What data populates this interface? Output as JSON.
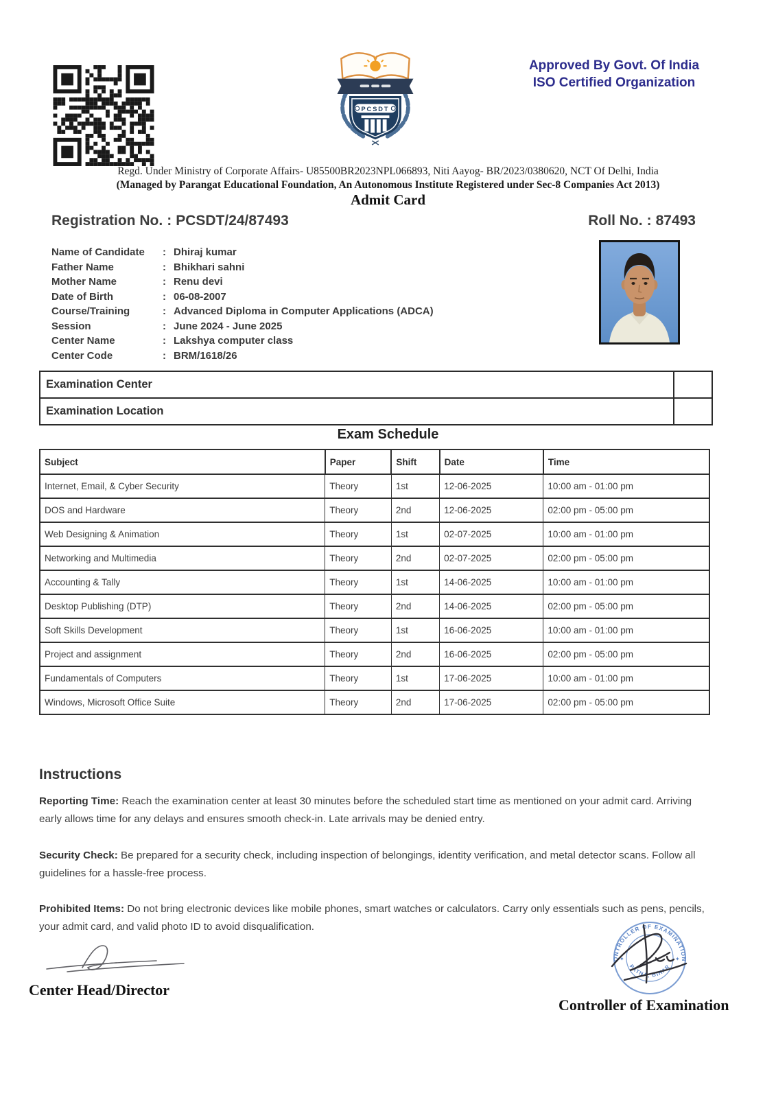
{
  "header": {
    "approved_line1": "Approved By Govt. Of India",
    "approved_line2": "ISO Certified Organization",
    "regd_line": "Regd. Under Ministry of Corporate Affairs- U85500BR2023NPL066893, Niti Aayog- BR/2023/0380620, NCT Of Delhi, India",
    "managed_line": "(Managed by Parangat Educational Foundation, An Autonomous Institute Registered under Sec-8 Companies Act 2013)",
    "title": "Admit Card"
  },
  "logo": {
    "text": "PCSDT"
  },
  "identity": {
    "separator": ":",
    "registration": {
      "label": "Registration No.",
      "value": "PCSDT/24/87493"
    },
    "roll": {
      "label": "Roll No.",
      "value": "87493"
    }
  },
  "candidate": {
    "separator": ":",
    "rows": [
      {
        "label": "Name of Candidate",
        "value": "Dhiraj kumar"
      },
      {
        "label": "Father Name",
        "value": "Bhikhari sahni"
      },
      {
        "label": "Mother Name",
        "value": "Renu devi"
      },
      {
        "label": "Date of Birth",
        "value": "06-08-2007"
      },
      {
        "label": "Course/Training",
        "value": "Advanced Diploma in Computer Applications (ADCA)"
      },
      {
        "label": "Session",
        "value": "June 2024 - June 2025"
      },
      {
        "label": "Center Name",
        "value": "Lakshya computer class"
      },
      {
        "label": "Center Code",
        "value": "BRM/1618/26"
      }
    ]
  },
  "exam_center": {
    "rows": [
      "Examination Center",
      "Examination Location"
    ]
  },
  "schedule": {
    "title": "Exam Schedule",
    "columns": [
      "Subject",
      "Paper",
      "Shift",
      "Date",
      "Time"
    ],
    "rows": [
      [
        "Internet, Email, & Cyber Security",
        "Theory",
        "1st",
        "12-06-2025",
        "10:00 am - 01:00 pm"
      ],
      [
        "DOS and Hardware",
        "Theory",
        "2nd",
        "12-06-2025",
        "02:00 pm - 05:00 pm"
      ],
      [
        "Web Designing & Animation",
        "Theory",
        "1st",
        "02-07-2025",
        "10:00 am - 01:00 pm"
      ],
      [
        "Networking and Multimedia",
        "Theory",
        "2nd",
        "02-07-2025",
        "02:00 pm - 05:00 pm"
      ],
      [
        "Accounting & Tally",
        "Theory",
        "1st",
        "14-06-2025",
        "10:00 am - 01:00 pm"
      ],
      [
        "Desktop Publishing (DTP)",
        "Theory",
        "2nd",
        "14-06-2025",
        "02:00 pm - 05:00 pm"
      ],
      [
        "Soft Skills Development",
        "Theory",
        "1st",
        "16-06-2025",
        "10:00 am - 01:00 pm"
      ],
      [
        "Project and assignment",
        "Theory",
        "2nd",
        "16-06-2025",
        "02:00 pm - 05:00 pm"
      ],
      [
        "Fundamentals of Computers",
        "Theory",
        "1st",
        "17-06-2025",
        "10:00 am - 01:00 pm"
      ],
      [
        "Windows, Microsoft Office Suite",
        "Theory",
        "2nd",
        "17-06-2025",
        "02:00 pm - 05:00 pm"
      ]
    ]
  },
  "instructions": {
    "title": "Instructions",
    "items": [
      {
        "label": "Reporting Time:",
        "text": "Reach the examination center at least 30 minutes before the scheduled start time as mentioned on your admit card. Arriving early allows time for any delays and ensures smooth check-in. Late arrivals may be denied entry."
      },
      {
        "label": "Security Check:",
        "text": "Be prepared for a security check, including inspection of belongings, identity verification, and metal detector scans. Follow all guidelines for a hassle-free process."
      },
      {
        "label": "Prohibited Items:",
        "text": "Do not bring electronic devices like mobile phones, smart watches or calculators.  Carry only essentials such as pens, pencils, your admit card, and valid photo ID to avoid disqualification."
      }
    ]
  },
  "footer": {
    "left_title": "Center Head/Director",
    "right_title": "Controller of Examination",
    "stamp_top": "CONTROLLER OF EXAMINATIONS",
    "stamp_bottom": "PATNA, BIHAR"
  },
  "colors": {
    "approved_navy": "#2d2d8d",
    "logo_navy": "#1f3e60",
    "logo_orange": "#f2a024",
    "stamp_blue": "#5b84c6",
    "text_dark": "#3d3d3d",
    "photo_bg": "#6f9fd6"
  }
}
